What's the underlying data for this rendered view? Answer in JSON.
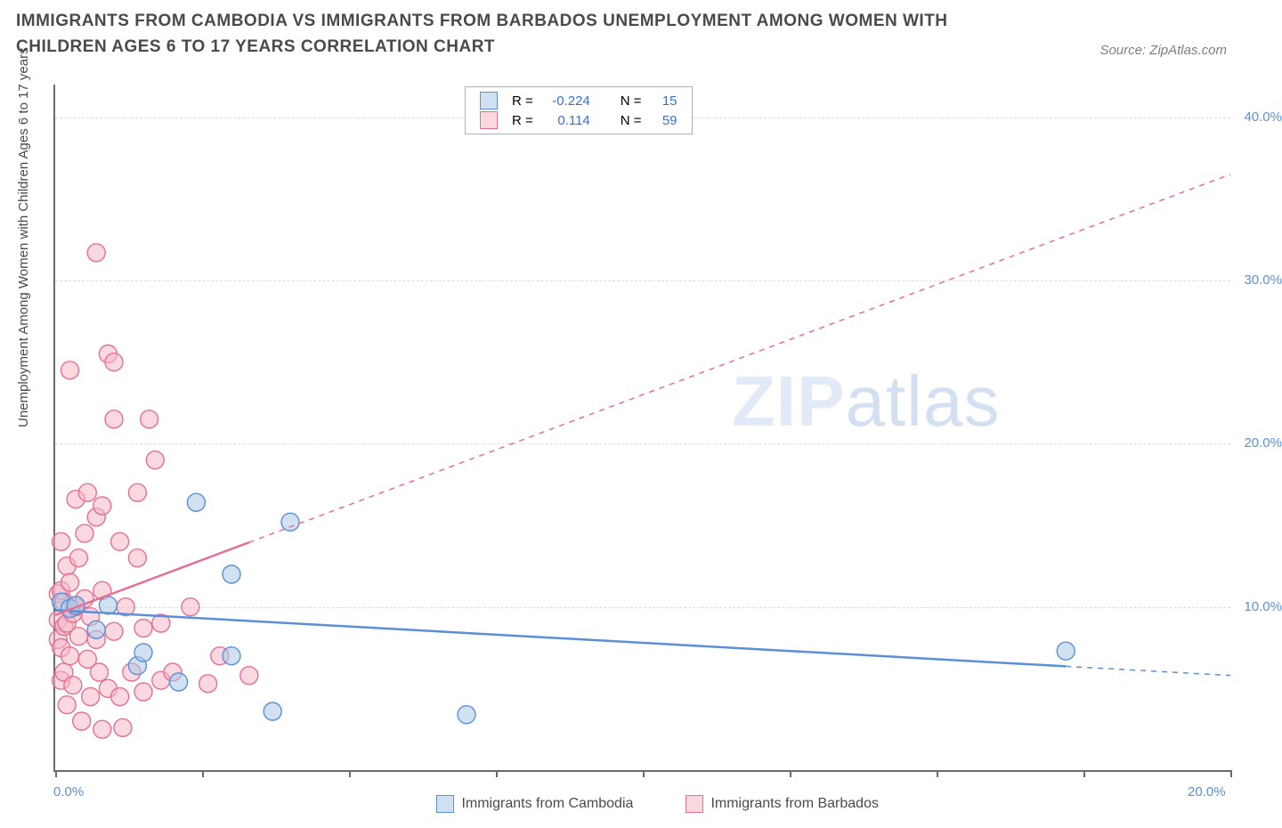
{
  "title": "IMMIGRANTS FROM CAMBODIA VS IMMIGRANTS FROM BARBADOS UNEMPLOYMENT AMONG WOMEN WITH CHILDREN AGES 6 TO 17 YEARS CORRELATION CHART",
  "source": "Source: ZipAtlas.com",
  "ylabel": "Unemployment Among Women with Children Ages 6 to 17 years",
  "watermark_bold": "ZIP",
  "watermark_thin": "atlas",
  "chart": {
    "type": "scatter",
    "xlim": [
      0,
      20
    ],
    "ylim": [
      0,
      42
    ],
    "x_ticks": [
      0,
      2.5,
      5,
      7.5,
      10,
      12.5,
      15,
      17.5,
      20
    ],
    "x_tick_labels": {
      "0": "0.0%",
      "20": "20.0%"
    },
    "y_ticks": [
      10,
      20,
      30,
      40
    ],
    "y_tick_labels": {
      "10": "10.0%",
      "20": "20.0%",
      "30": "30.0%",
      "40": "40.0%"
    },
    "grid_color": "#dcdcdc",
    "axis_color": "#6b6b6b",
    "series": [
      {
        "name": "Immigrants from Cambodia",
        "label": "Immigrants from Cambodia",
        "color_fill": "#a9c8e8",
        "color_fill_alpha": 0.55,
        "color_stroke": "#5b8fd6",
        "marker_radius": 10,
        "R_label": "R =",
        "R": "-0.224",
        "N_label": "N =",
        "N": "15",
        "trend": {
          "x1": 0,
          "y1": 9.8,
          "x2": 20,
          "y2": 5.8,
          "solid_until_x": 17.2,
          "width": 2.5
        },
        "points": [
          [
            0.1,
            10.3
          ],
          [
            0.25,
            9.9
          ],
          [
            0.35,
            10.1
          ],
          [
            0.7,
            8.6
          ],
          [
            0.9,
            10.1
          ],
          [
            1.4,
            6.4
          ],
          [
            1.5,
            7.2
          ],
          [
            2.1,
            5.4
          ],
          [
            2.4,
            16.4
          ],
          [
            3.0,
            12.0
          ],
          [
            3.0,
            7.0
          ],
          [
            3.7,
            3.6
          ],
          [
            4.0,
            15.2
          ],
          [
            7.0,
            3.4
          ],
          [
            17.2,
            7.3
          ]
        ]
      },
      {
        "name": "Immigrants from Barbados",
        "label": "Immigrants from Barbados",
        "color_fill": "#f4b8c6",
        "color_fill_alpha": 0.55,
        "color_stroke": "#e66f94",
        "marker_radius": 10,
        "R_label": "R =",
        "R": "0.114",
        "N_label": "N =",
        "N": "59",
        "trend": {
          "x1": 0,
          "y1": 9.5,
          "x2": 20,
          "y2": 36.5,
          "solid_until_x": 3.3,
          "width": 2.5
        },
        "points": [
          [
            0.05,
            10.8
          ],
          [
            0.05,
            9.2
          ],
          [
            0.05,
            8.0
          ],
          [
            0.1,
            11.0
          ],
          [
            0.1,
            7.5
          ],
          [
            0.1,
            5.5
          ],
          [
            0.1,
            14.0
          ],
          [
            0.15,
            10.3
          ],
          [
            0.15,
            8.8
          ],
          [
            0.15,
            6.0
          ],
          [
            0.2,
            12.5
          ],
          [
            0.2,
            9.0
          ],
          [
            0.2,
            4.0
          ],
          [
            0.25,
            24.5
          ],
          [
            0.25,
            11.5
          ],
          [
            0.25,
            7.0
          ],
          [
            0.3,
            9.6
          ],
          [
            0.3,
            5.2
          ],
          [
            0.35,
            16.6
          ],
          [
            0.35,
            10.0
          ],
          [
            0.4,
            13.0
          ],
          [
            0.4,
            8.2
          ],
          [
            0.45,
            3.0
          ],
          [
            0.5,
            14.5
          ],
          [
            0.5,
            10.5
          ],
          [
            0.55,
            17.0
          ],
          [
            0.55,
            6.8
          ],
          [
            0.6,
            9.4
          ],
          [
            0.6,
            4.5
          ],
          [
            0.7,
            31.7
          ],
          [
            0.7,
            15.5
          ],
          [
            0.7,
            8.0
          ],
          [
            0.75,
            6.0
          ],
          [
            0.8,
            16.2
          ],
          [
            0.8,
            11.0
          ],
          [
            0.8,
            2.5
          ],
          [
            0.9,
            25.5
          ],
          [
            0.9,
            5.0
          ],
          [
            1.0,
            25.0
          ],
          [
            1.0,
            21.5
          ],
          [
            1.0,
            8.5
          ],
          [
            1.1,
            14.0
          ],
          [
            1.1,
            4.5
          ],
          [
            1.15,
            2.6
          ],
          [
            1.2,
            10.0
          ],
          [
            1.3,
            6.0
          ],
          [
            1.4,
            13.0
          ],
          [
            1.4,
            17.0
          ],
          [
            1.5,
            4.8
          ],
          [
            1.5,
            8.7
          ],
          [
            1.6,
            21.5
          ],
          [
            1.7,
            19.0
          ],
          [
            1.8,
            5.5
          ],
          [
            1.8,
            9.0
          ],
          [
            2.0,
            6.0
          ],
          [
            2.3,
            10.0
          ],
          [
            2.6,
            5.3
          ],
          [
            2.8,
            7.0
          ],
          [
            3.3,
            5.8
          ]
        ]
      }
    ]
  },
  "legend_top": {
    "value_color": "#3b6fd0"
  },
  "colors": {
    "title": "#4a4a4a",
    "source": "#808080",
    "tick_label": "#5b8fd6",
    "background": "#ffffff"
  }
}
